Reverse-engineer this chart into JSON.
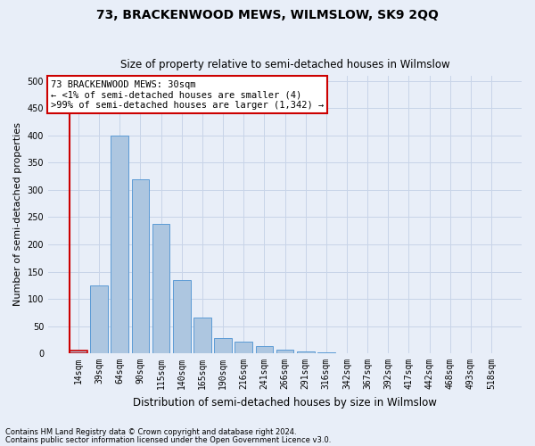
{
  "title": "73, BRACKENWOOD MEWS, WILMSLOW, SK9 2QQ",
  "subtitle": "Size of property relative to semi-detached houses in Wilmslow",
  "xlabel": "Distribution of semi-detached houses by size in Wilmslow",
  "ylabel": "Number of semi-detached properties",
  "footnote1": "Contains HM Land Registry data © Crown copyright and database right 2024.",
  "footnote2": "Contains public sector information licensed under the Open Government Licence v3.0.",
  "categories": [
    "14sqm",
    "39sqm",
    "64sqm",
    "90sqm",
    "115sqm",
    "140sqm",
    "165sqm",
    "190sqm",
    "216sqm",
    "241sqm",
    "266sqm",
    "291sqm",
    "316sqm",
    "342sqm",
    "367sqm",
    "392sqm",
    "417sqm",
    "442sqm",
    "468sqm",
    "493sqm",
    "518sqm"
  ],
  "bar_heights": [
    5,
    125,
    400,
    320,
    238,
    135,
    65,
    28,
    22,
    13,
    6,
    3,
    1,
    0,
    0,
    0,
    0,
    0,
    0,
    0,
    0
  ],
  "bar_color": "#adc6e0",
  "bar_edge_color": "#5b9bd5",
  "highlight_color": "#cc0000",
  "annotation_text": "73 BRACKENWOOD MEWS: 30sqm\n← <1% of semi-detached houses are smaller (4)\n>99% of semi-detached houses are larger (1,342) →",
  "annotation_box_color": "#ffffff",
  "annotation_border_color": "#cc0000",
  "ylim": [
    0,
    510
  ],
  "yticks": [
    0,
    50,
    100,
    150,
    200,
    250,
    300,
    350,
    400,
    450,
    500
  ],
  "grid_color": "#c8d4e8",
  "bg_color": "#e8eef8",
  "plot_bg_color": "#e8eef8",
  "title_fontsize": 10,
  "subtitle_fontsize": 8.5,
  "ylabel_fontsize": 8,
  "xlabel_fontsize": 8.5,
  "footnote_fontsize": 6,
  "tick_fontsize": 7,
  "annotation_fontsize": 7.5
}
